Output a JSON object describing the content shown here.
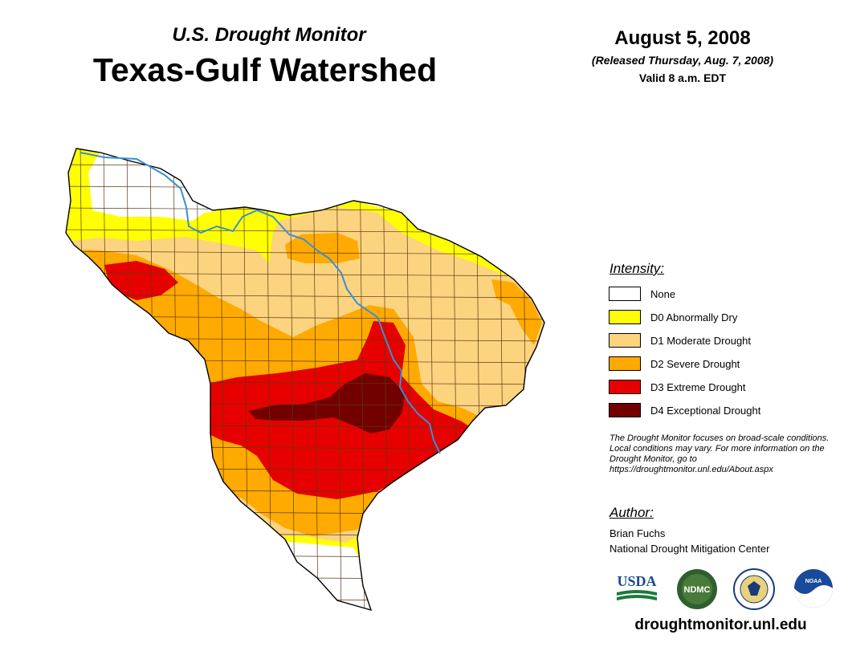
{
  "header": {
    "subtitle": "U.S. Drought Monitor",
    "title": "Texas-Gulf Watershed",
    "date": "August 5, 2008",
    "released": "(Released Thursday, Aug. 7, 2008)",
    "valid": "Valid 8 a.m. EDT"
  },
  "legend": {
    "title": "Intensity:",
    "items": [
      {
        "label": "None",
        "color": "#ffffff"
      },
      {
        "label": "D0 Abnormally Dry",
        "color": "#ffff00"
      },
      {
        "label": "D1 Moderate Drought",
        "color": "#fcd37f"
      },
      {
        "label": "D2 Severe Drought",
        "color": "#ffaa00"
      },
      {
        "label": "D3 Extreme Drought",
        "color": "#e60000"
      },
      {
        "label": "D4 Exceptional Drought",
        "color": "#730000"
      }
    ]
  },
  "note": "The Drought Monitor focuses on broad-scale conditions. Local conditions may vary. For more information on the Drought Monitor, go to https://droughtmonitor.unl.edu/About.aspx",
  "author": {
    "title": "Author:",
    "name": "Brian Fuchs",
    "org": "National Drought Mitigation Center"
  },
  "logos": {
    "usda": "USDA",
    "ndmc": "NDMC",
    "noaa": "NOAA"
  },
  "footer": {
    "url": "droughtmonitor.unl.edu"
  },
  "colors": {
    "river": "#3a8fd6",
    "county_border": "#5a3a10"
  }
}
